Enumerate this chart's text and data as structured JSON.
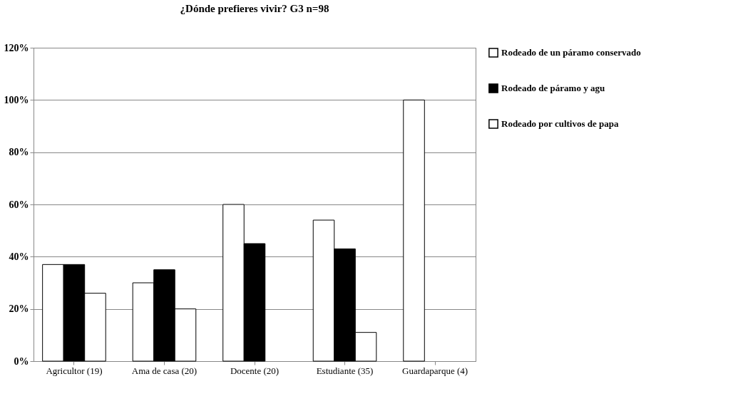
{
  "chart_data": {
    "type": "bar",
    "title": "¿Dónde prefieres vivir? G3 n=98",
    "categories": [
      "Agricultor  (19)",
      "Ama de casa (20)",
      "Docente  (20)",
      "Estudiante (35)",
      "Guardaparque (4)"
    ],
    "series": [
      {
        "name": "Rodeado de un páramo conservado",
        "color": "#ffffff",
        "values": [
          37,
          30,
          60,
          54,
          100
        ]
      },
      {
        "name": "Rodeado de páramo y agu",
        "color": "#000000",
        "values": [
          37,
          35,
          45,
          43,
          null
        ]
      },
      {
        "name": "Rodeado por cultivos de papa",
        "color": "#ffffff",
        "values": [
          26,
          20,
          null,
          11,
          null
        ]
      }
    ],
    "ylim": [
      0,
      120
    ],
    "yticks": [
      {
        "value": 0,
        "label": "0%"
      },
      {
        "value": 20,
        "label": "20%"
      },
      {
        "value": 40,
        "label": "40%"
      },
      {
        "value": 60,
        "label": "60%"
      },
      {
        "value": 80,
        "label": "80%"
      },
      {
        "value": 100,
        "label": "100%"
      },
      {
        "value": 120,
        "label": "120%"
      }
    ],
    "grid": "y",
    "legend": "right"
  }
}
